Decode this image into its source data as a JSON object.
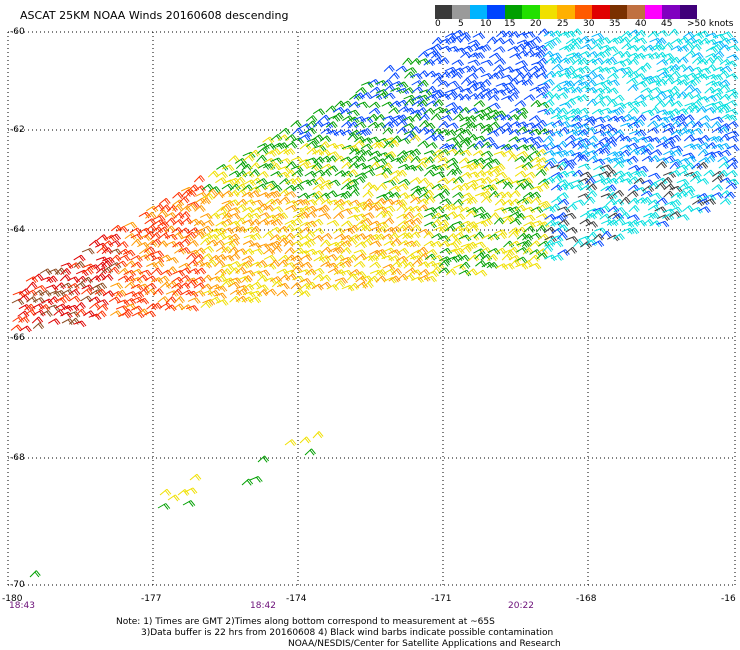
{
  "title": "ASCAT 25KM NOAA Winds 20160608 descending",
  "legend": {
    "colors": [
      "#3a3a3a",
      "#9a9a9a",
      "#00b4ff",
      "#0044ff",
      "#00a000",
      "#22e000",
      "#f0e000",
      "#ffb000",
      "#ff5a00",
      "#e00000",
      "#7a3000",
      "#c07040",
      "#ff00ff",
      "#8000c0",
      "#40007a"
    ],
    "ticks": [
      "0",
      "5",
      "10",
      "15",
      "20",
      "25",
      "30",
      "35",
      "40",
      "45",
      ">50 knots"
    ]
  },
  "lat_labels": [
    "-60",
    "-62",
    "-64",
    "-66",
    "-68",
    "-70"
  ],
  "lon_labels": [
    "-180",
    "-177",
    "-174",
    "-171",
    "-168",
    "-16"
  ],
  "time_labels": [
    "18:43",
    "18:42",
    "20:22"
  ],
  "notes": {
    "line1": "Note: 1) Times are GMT 2)Times along bottom correspond to measurement at ~65S",
    "line2": "3)Data buffer is 22 hrs from 20160608 4) Black wind barbs indicate possible contamination",
    "line3": "NOAA/NESDIS/Center for Satellite Applications and Research"
  },
  "speed_colors": {
    "0": "#3a3a3a",
    "5": "#00e0e0",
    "10": "#00b4ff",
    "15": "#0044ff",
    "20": "#00a000",
    "25": "#f0e000",
    "30": "#ff9a00",
    "35": "#ff3000",
    "40": "#e00000",
    "45": "#8a4a20"
  }
}
